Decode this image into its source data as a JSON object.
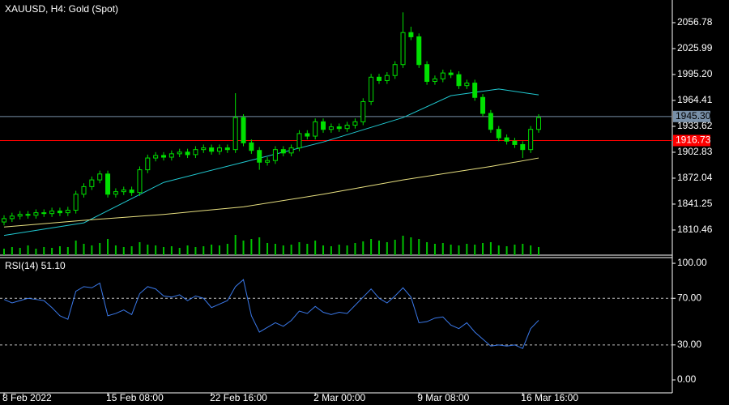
{
  "chart_data": [
    {
      "type": "candlestick",
      "title": "XAUUSD, H4:  Gold (Spot)",
      "color": "#00e000",
      "volume_color": "#00c000",
      "categories": [
        "8 Feb 2022",
        null,
        null,
        null,
        null,
        null,
        null,
        null,
        null,
        null,
        null,
        null,
        null,
        "15 Feb 08:00",
        null,
        null,
        null,
        null,
        null,
        null,
        null,
        null,
        null,
        null,
        null,
        null,
        "22 Feb 16:00",
        null,
        null,
        null,
        null,
        null,
        null,
        null,
        null,
        null,
        null,
        null,
        null,
        "2 Mar 00:00",
        null,
        null,
        null,
        null,
        null,
        null,
        null,
        null,
        null,
        null,
        null,
        null,
        "9 Mar 08:00",
        null,
        null,
        null,
        null,
        null,
        null,
        null,
        null,
        null,
        null,
        null,
        null,
        "16 Mar 16:00",
        null,
        null
      ],
      "open": [
        1820,
        1824,
        1827,
        1829,
        1828,
        1831,
        1830,
        1833,
        1831,
        1834,
        1853,
        1862,
        1870,
        1877,
        1853,
        1856,
        1858,
        1855,
        1882,
        1896,
        1899,
        1897,
        1901,
        1903,
        1900,
        1906,
        1908,
        1904,
        1908,
        1906,
        1944,
        1914,
        1905,
        1891,
        1893,
        1906,
        1902,
        1908,
        1925,
        1922,
        1939,
        1930,
        1933,
        1931,
        1935,
        1939,
        1963,
        1992,
        1988,
        1994,
        2007,
        2045,
        2040,
        2007,
        1987,
        1990,
        1997,
        1995,
        1982,
        1985,
        1968,
        1949,
        1930,
        1920,
        1916,
        1912,
        1906,
        1930
      ],
      "high": [
        1828,
        1831,
        1833,
        1833,
        1835,
        1835,
        1837,
        1837,
        1838,
        1857,
        1866,
        1874,
        1881,
        1881,
        1860,
        1862,
        1862,
        1886,
        1900,
        1903,
        1903,
        1905,
        1907,
        1907,
        1910,
        1912,
        1912,
        1912,
        1912,
        1973,
        1948,
        1918,
        1909,
        1897,
        1910,
        1910,
        1912,
        1929,
        1929,
        1943,
        1943,
        1937,
        1937,
        1939,
        1943,
        1967,
        1996,
        1996,
        1998,
        2011,
        2069,
        2052,
        2044,
        2011,
        1994,
        2001,
        2001,
        1999,
        1989,
        1989,
        1972,
        1953,
        1934,
        1924,
        1920,
        1916,
        1934,
        1948
      ],
      "low": [
        1816,
        1820,
        1823,
        1824,
        1824,
        1826,
        1826,
        1827,
        1827,
        1830,
        1849,
        1858,
        1866,
        1849,
        1849,
        1852,
        1851,
        1851,
        1878,
        1892,
        1893,
        1893,
        1897,
        1896,
        1896,
        1902,
        1900,
        1900,
        1902,
        1902,
        1910,
        1901,
        1882,
        1887,
        1889,
        1898,
        1898,
        1904,
        1918,
        1918,
        1926,
        1926,
        1927,
        1927,
        1931,
        1935,
        1959,
        1984,
        1984,
        1990,
        2003,
        2036,
        2003,
        1983,
        1983,
        1986,
        1991,
        1978,
        1978,
        1964,
        1945,
        1926,
        1916,
        1912,
        1908,
        1896,
        1902,
        1926
      ],
      "close": [
        1824,
        1827,
        1829,
        1828,
        1831,
        1830,
        1833,
        1831,
        1834,
        1853,
        1862,
        1870,
        1877,
        1853,
        1856,
        1858,
        1855,
        1882,
        1896,
        1899,
        1897,
        1901,
        1903,
        1900,
        1906,
        1908,
        1904,
        1908,
        1906,
        1944,
        1914,
        1905,
        1891,
        1893,
        1906,
        1902,
        1908,
        1925,
        1922,
        1939,
        1930,
        1933,
        1931,
        1935,
        1939,
        1963,
        1992,
        1988,
        1994,
        2007,
        2045,
        2040,
        2007,
        1987,
        1990,
        1997,
        1995,
        1982,
        1985,
        1968,
        1949,
        1930,
        1920,
        1916,
        1912,
        1906,
        1930,
        1944
      ],
      "volume": [
        8,
        10,
        9,
        12,
        8,
        10,
        9,
        11,
        10,
        18,
        14,
        12,
        15,
        20,
        12,
        10,
        11,
        16,
        13,
        12,
        10,
        11,
        9,
        12,
        10,
        11,
        13,
        12,
        14,
        25,
        18,
        20,
        22,
        15,
        14,
        12,
        13,
        16,
        14,
        18,
        12,
        11,
        13,
        12,
        15,
        17,
        20,
        18,
        16,
        19,
        24,
        22,
        20,
        16,
        14,
        15,
        13,
        12,
        14,
        13,
        15,
        16,
        12,
        11,
        13,
        14,
        12,
        10
      ],
      "series": [
        {
          "color": "#20c8d0",
          "x": [
            0,
            10,
            20,
            30,
            40,
            50,
            56,
            62,
            67
          ],
          "values": [
            1804,
            1819,
            1867,
            1891,
            1915,
            1944,
            1970,
            1978,
            1971
          ]
        },
        {
          "color": "#e8e080",
          "x": [
            0,
            10,
            20,
            30,
            40,
            50,
            61,
            67
          ],
          "values": [
            1814,
            1822,
            1829,
            1838,
            1853,
            1870,
            1886,
            1896
          ]
        }
      ],
      "hlines": [
        {
          "value": 1945.3,
          "label": "1945.30",
          "color": "#7890a8",
          "text_color": "#000000"
        },
        {
          "value": 1916.73,
          "label": "1916.73",
          "color": "#ff0000",
          "text_color": "#ffffff"
        }
      ],
      "ylim": [
        1780.6,
        2083.7
      ],
      "yticks": [
        2056.78,
        2025.99,
        {
          "value": 1995.2,
          "label": "1995.20"
        },
        1964.41,
        1933.62,
        1902.83,
        1872.04,
        1841.25,
        1810.46
      ]
    },
    {
      "type": "line",
      "title": "RSI(14) 51.10",
      "series": [
        {
          "color": "#3a78e8",
          "values": [
            69,
            66,
            68,
            70,
            69,
            68,
            62,
            55,
            52,
            76,
            80,
            79,
            83,
            55,
            57,
            60,
            56,
            74,
            80,
            78,
            72,
            71,
            73,
            68,
            72,
            70,
            62,
            65,
            68,
            80,
            86,
            55,
            41,
            45,
            49,
            46,
            51,
            59,
            57,
            63,
            58,
            56,
            58,
            57,
            64,
            71,
            78,
            70,
            66,
            72,
            79,
            71,
            49,
            50,
            53,
            54,
            47,
            44,
            49,
            41,
            35,
            29,
            30,
            29,
            30,
            27,
            44,
            51.1
          ]
        }
      ],
      "levels": [
        70,
        30
      ],
      "ylim": [
        -11.1,
        104.9
      ],
      "yticks": [
        {
          "value": 100,
          "label": "100.00"
        },
        {
          "value": 70,
          "label": "70.00"
        },
        {
          "value": 30,
          "label": "30.00"
        },
        {
          "value": 0,
          "label": "0.00"
        }
      ]
    }
  ]
}
